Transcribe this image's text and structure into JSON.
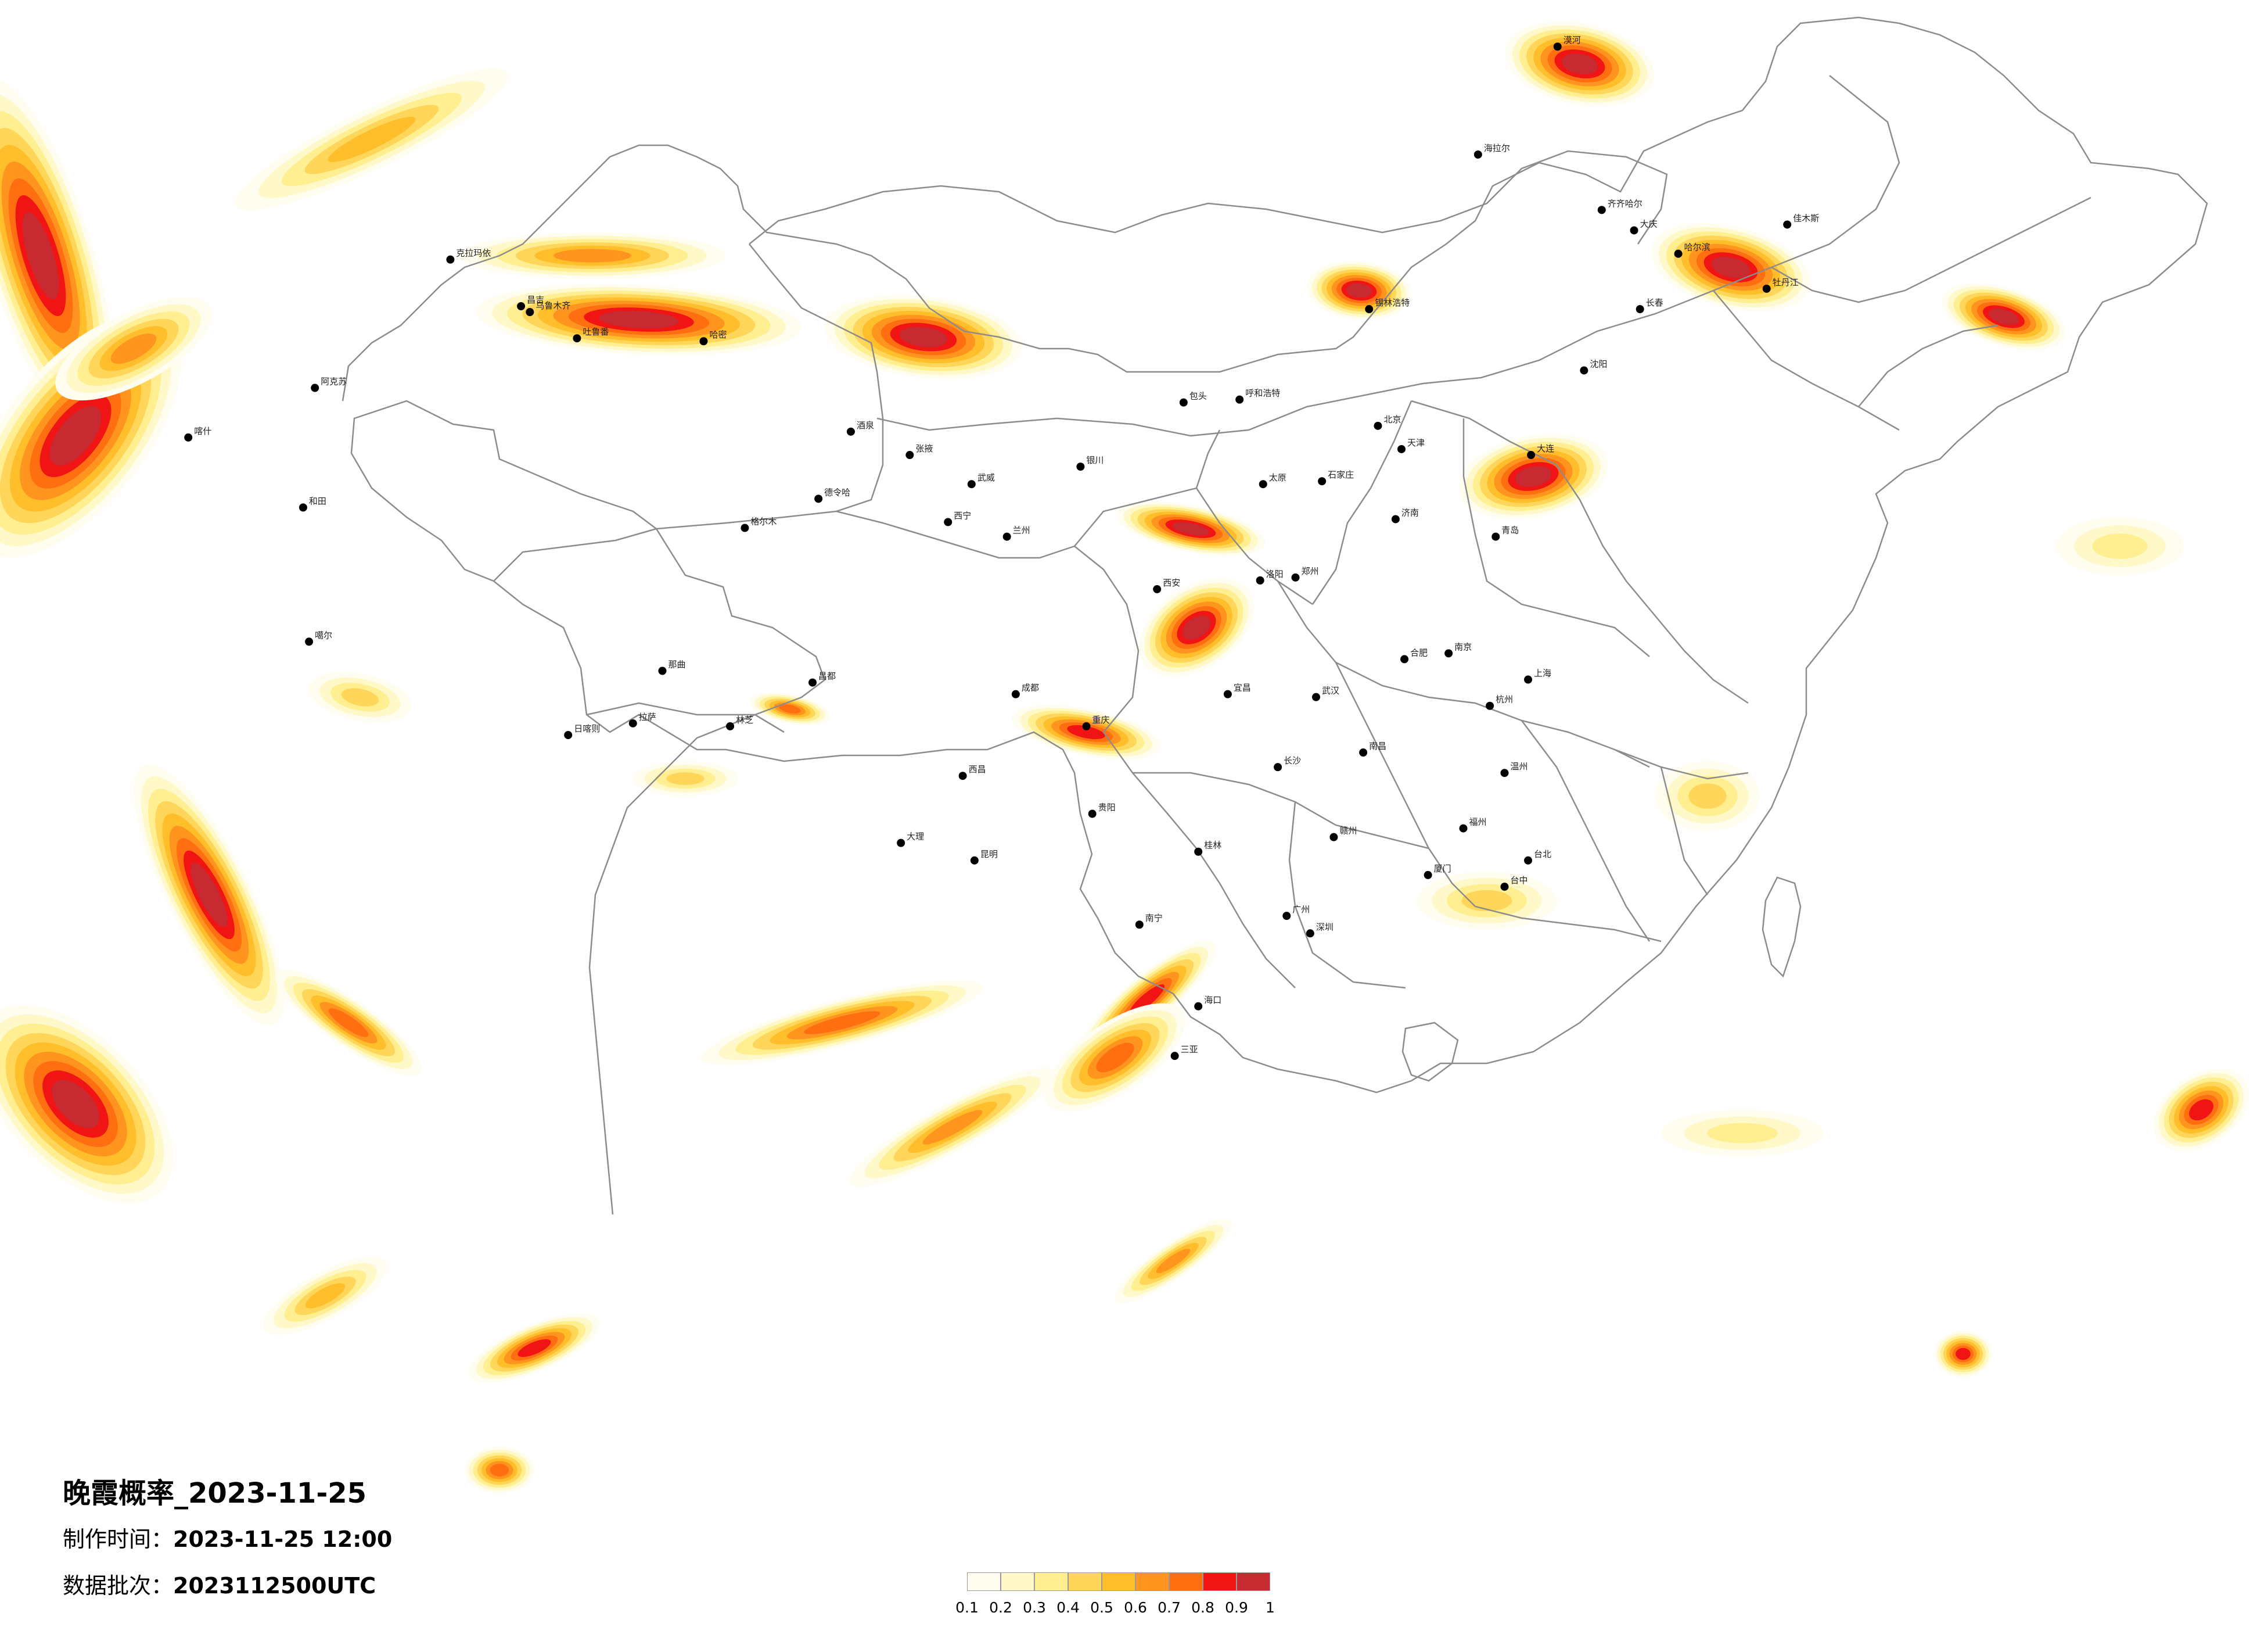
{
  "title": "晚霞概率_2023-11-25",
  "made": {
    "label": "制作时间：",
    "value": "2023-11-25 12:00"
  },
  "batch": {
    "label": "数据批次：",
    "value": "2023112500UTC"
  },
  "legend": {
    "ticks": [
      "0.1",
      "0.2",
      "0.3",
      "0.4",
      "0.5",
      "0.6",
      "0.7",
      "0.8",
      "0.9",
      "1"
    ],
    "colors": [
      "#fffdef",
      "#fff8c8",
      "#ffef90",
      "#ffd65a",
      "#ffbe2a",
      "#ff951f",
      "#ff6e10",
      "#f01414",
      "#c82a32"
    ]
  },
  "colors": {
    "border": "#8c8c8c",
    "city_dot": "#000000",
    "background": "#ffffff"
  },
  "cities": [
    {
      "name": "哈尔滨",
      "lon": 126.6,
      "lat": 45.8
    },
    {
      "name": "长春",
      "lon": 125.3,
      "lat": 43.9
    },
    {
      "name": "沈阳",
      "lon": 123.4,
      "lat": 41.8
    },
    {
      "name": "北京",
      "lon": 116.4,
      "lat": 39.9
    },
    {
      "name": "天津",
      "lon": 117.2,
      "lat": 39.1
    },
    {
      "name": "石家庄",
      "lon": 114.5,
      "lat": 38.0
    },
    {
      "name": "太原",
      "lon": 112.5,
      "lat": 37.9
    },
    {
      "name": "呼和浩特",
      "lon": 111.7,
      "lat": 40.8
    },
    {
      "name": "济南",
      "lon": 117.0,
      "lat": 36.7
    },
    {
      "name": "郑州",
      "lon": 113.6,
      "lat": 34.7
    },
    {
      "name": "西安",
      "lon": 108.9,
      "lat": 34.3
    },
    {
      "name": "兰州",
      "lon": 103.8,
      "lat": 36.1
    },
    {
      "name": "西宁",
      "lon": 101.8,
      "lat": 36.6
    },
    {
      "name": "银川",
      "lon": 106.3,
      "lat": 38.5
    },
    {
      "name": "乌鲁木齐",
      "lon": 87.6,
      "lat": 43.8
    },
    {
      "name": "拉萨",
      "lon": 91.1,
      "lat": 29.7
    },
    {
      "name": "成都",
      "lon": 104.1,
      "lat": 30.7
    },
    {
      "name": "重庆",
      "lon": 106.5,
      "lat": 29.6
    },
    {
      "name": "贵阳",
      "lon": 106.7,
      "lat": 26.6
    },
    {
      "name": "昆明",
      "lon": 102.7,
      "lat": 25.0
    },
    {
      "name": "南宁",
      "lon": 108.3,
      "lat": 22.8
    },
    {
      "name": "广州",
      "lon": 113.3,
      "lat": 23.1
    },
    {
      "name": "长沙",
      "lon": 113.0,
      "lat": 28.2
    },
    {
      "name": "武汉",
      "lon": 114.3,
      "lat": 30.6
    },
    {
      "name": "南昌",
      "lon": 115.9,
      "lat": 28.7
    },
    {
      "name": "合肥",
      "lon": 117.3,
      "lat": 31.9
    },
    {
      "name": "南京",
      "lon": 118.8,
      "lat": 32.1
    },
    {
      "name": "杭州",
      "lon": 120.2,
      "lat": 30.3
    },
    {
      "name": "福州",
      "lon": 119.3,
      "lat": 26.1
    },
    {
      "name": "海口",
      "lon": 110.3,
      "lat": 20.0
    },
    {
      "name": "台北",
      "lon": 121.5,
      "lat": 25.0
    },
    {
      "name": "台中",
      "lon": 120.7,
      "lat": 24.1
    },
    {
      "name": "喀什",
      "lon": 76.0,
      "lat": 39.5
    },
    {
      "name": "和田",
      "lon": 79.9,
      "lat": 37.1
    },
    {
      "name": "阿克苏",
      "lon": 80.3,
      "lat": 41.2
    },
    {
      "name": "克拉玛依",
      "lon": 84.9,
      "lat": 45.6
    },
    {
      "name": "昌吉",
      "lon": 87.3,
      "lat": 44.0
    },
    {
      "name": "哈密",
      "lon": 93.5,
      "lat": 42.8
    },
    {
      "name": "吐鲁番",
      "lon": 89.2,
      "lat": 42.9
    },
    {
      "name": "日喀则",
      "lon": 88.9,
      "lat": 29.3
    },
    {
      "name": "林芝",
      "lon": 94.4,
      "lat": 29.6
    },
    {
      "name": "那曲",
      "lon": 92.1,
      "lat": 31.5
    },
    {
      "name": "昌都",
      "lon": 97.2,
      "lat": 31.1
    },
    {
      "name": "噶尔",
      "lon": 80.1,
      "lat": 32.5
    },
    {
      "name": "德令哈",
      "lon": 97.4,
      "lat": 37.4
    },
    {
      "name": "格尔木",
      "lon": 94.9,
      "lat": 36.4
    },
    {
      "name": "酒泉",
      "lon": 98.5,
      "lat": 39.7
    },
    {
      "name": "张掖",
      "lon": 100.5,
      "lat": 38.9
    },
    {
      "name": "武威",
      "lon": 102.6,
      "lat": 37.9
    },
    {
      "name": "海拉尔",
      "lon": 119.8,
      "lat": 49.2
    },
    {
      "name": "齐齐哈尔",
      "lon": 124.0,
      "lat": 47.3
    },
    {
      "name": "大庆",
      "lon": 125.1,
      "lat": 46.6
    },
    {
      "name": "佳木斯",
      "lon": 130.3,
      "lat": 46.8
    },
    {
      "name": "牡丹江",
      "lon": 129.6,
      "lat": 44.6
    },
    {
      "name": "锡林浩特",
      "lon": 116.1,
      "lat": 43.9
    },
    {
      "name": "包头",
      "lon": 109.8,
      "lat": 40.7
    },
    {
      "name": "大连",
      "lon": 121.6,
      "lat": 38.9
    },
    {
      "name": "青岛",
      "lon": 120.4,
      "lat": 36.1
    },
    {
      "name": "上海",
      "lon": 121.5,
      "lat": 31.2
    },
    {
      "name": "厦门",
      "lon": 118.1,
      "lat": 24.5
    },
    {
      "name": "深圳",
      "lon": 114.1,
      "lat": 22.5
    },
    {
      "name": "桂林",
      "lon": 110.3,
      "lat": 25.3
    },
    {
      "name": "大理",
      "lon": 100.2,
      "lat": 25.6
    },
    {
      "name": "三亚",
      "lon": 109.5,
      "lat": 18.3
    },
    {
      "name": "宜昌",
      "lon": 111.3,
      "lat": 30.7
    },
    {
      "name": "洛阳",
      "lon": 112.4,
      "lat": 34.6
    },
    {
      "name": "赣州",
      "lon": 114.9,
      "lat": 25.8
    },
    {
      "name": "温州",
      "lon": 120.7,
      "lat": 28.0
    },
    {
      "name": "西昌",
      "lon": 102.3,
      "lat": 27.9
    },
    {
      "name": "漠河",
      "lon": 122.5,
      "lat": 52.9
    }
  ]
}
